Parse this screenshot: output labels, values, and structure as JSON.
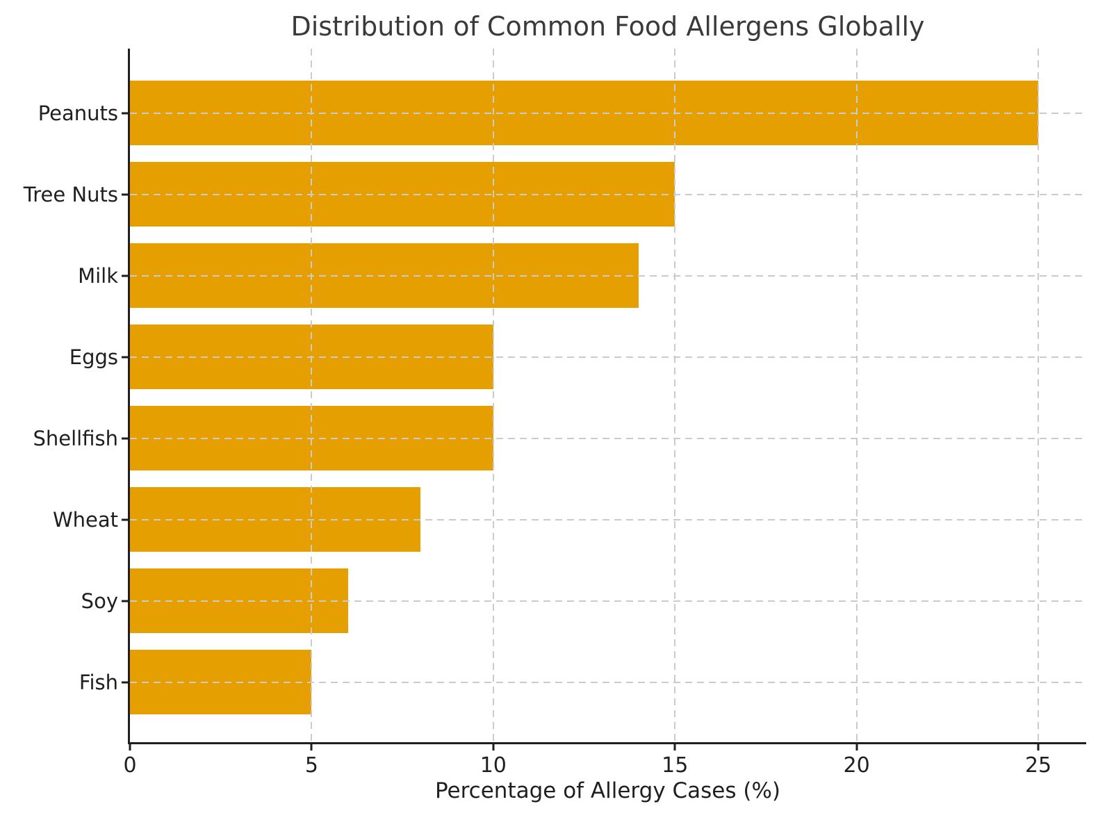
{
  "chart_data": {
    "type": "bar",
    "orientation": "horizontal",
    "title": "Distribution of Common Food Allergens Globally",
    "categories": [
      "Peanuts",
      "Tree Nuts",
      "Milk",
      "Eggs",
      "Shellfish",
      "Wheat",
      "Soy",
      "Fish"
    ],
    "values": [
      25,
      15,
      14,
      10,
      10,
      8,
      6,
      5
    ],
    "xlabel": "Percentage of Allergy Cases (%)",
    "ylabel": "",
    "xlim": [
      0,
      26.3
    ],
    "xticks": [
      0,
      5,
      10,
      15,
      20,
      25
    ],
    "legend_position": "none",
    "grid": {
      "visible": true,
      "style": "dashed",
      "axes": "both",
      "drawn_above_bars": true
    }
  },
  "colors": {
    "bar": "#e69f00",
    "grid": "#cbcbcb",
    "spine": "#1f1f1f",
    "tick_text": "#1f1f1f",
    "title_text": "#3a3a3a",
    "background": "#ffffff"
  }
}
